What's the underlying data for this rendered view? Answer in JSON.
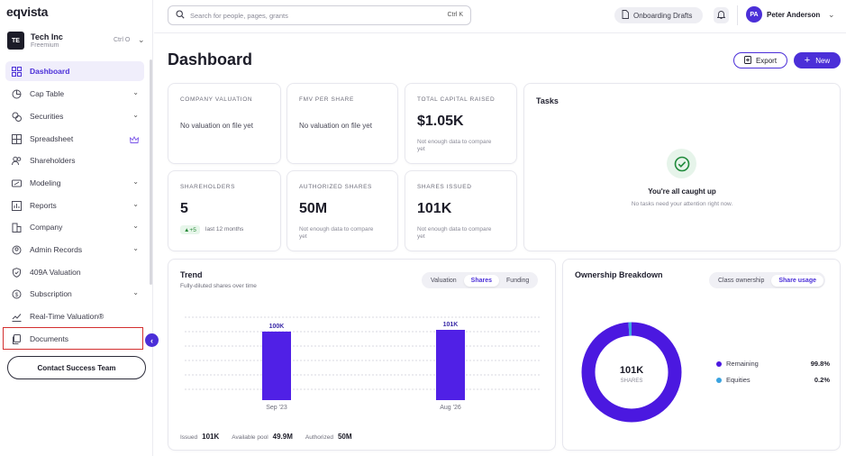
{
  "app": {
    "logo": "eqvista"
  },
  "company": {
    "initials": "TE",
    "name": "Tech Inc",
    "plan": "Freemium",
    "shortcut": "Ctrl O"
  },
  "sidebar": {
    "items": [
      {
        "label": "Dashboard",
        "icon": "dashboard-icon",
        "active": true
      },
      {
        "label": "Cap Table",
        "icon": "pie-chart-icon",
        "chevron": true
      },
      {
        "label": "Securities",
        "icon": "securities-icon",
        "chevron": true
      },
      {
        "label": "Spreadsheet",
        "icon": "table-icon",
        "crown": true
      },
      {
        "label": "Shareholders",
        "icon": "users-icon"
      },
      {
        "label": "Modeling",
        "icon": "modeling-icon",
        "chevron": true
      },
      {
        "label": "Reports",
        "icon": "reports-icon",
        "chevron": true
      },
      {
        "label": "Company",
        "icon": "company-icon",
        "chevron": true
      },
      {
        "label": "Admin Records",
        "icon": "admin-icon",
        "chevron": true
      },
      {
        "label": "409A Valuation",
        "icon": "shield-icon"
      },
      {
        "label": "Subscription",
        "icon": "dollar-icon",
        "chevron": true
      },
      {
        "label": "Real-Time Valuation®",
        "icon": "line-chart-icon"
      },
      {
        "label": "Documents",
        "icon": "documents-icon"
      }
    ],
    "contact_label": "Contact Success Team"
  },
  "topbar": {
    "search_placeholder": "Search for people, pages, grants",
    "search_shortcut": "Ctrl K",
    "drafts_label": "Onboarding Drafts",
    "user_initials": "PA",
    "user_name": "Peter Anderson"
  },
  "main": {
    "title": "Dashboard",
    "export_label": "Export",
    "new_label": "New",
    "stats": {
      "company_valuation": {
        "label": "COMPANY VALUATION",
        "value": "No valuation on file yet"
      },
      "fmv_per_share": {
        "label": "FMV PER SHARE",
        "value": "No valuation on file yet"
      },
      "total_capital_raised": {
        "label": "TOTAL CAPITAL RAISED",
        "value": "$1.05K",
        "note": "Not enough data to compare yet"
      },
      "shareholders": {
        "label": "SHAREHOLDERS",
        "value": "5",
        "delta": "▲+5",
        "period": "last 12 months"
      },
      "authorized_shares": {
        "label": "AUTHORIZED SHARES",
        "value": "50M",
        "note": "Not enough data to compare yet"
      },
      "shares_issued": {
        "label": "SHARES ISSUED",
        "value": "101K",
        "note": "Not enough data to compare yet"
      }
    },
    "tasks": {
      "title": "Tasks",
      "heading": "You're all caught up",
      "subtext": "No tasks need your attention right now."
    },
    "trend": {
      "title": "Trend",
      "subtitle": "Fully-diluted shares over time",
      "tabs": [
        "Valuation",
        "Shares",
        "Funding"
      ],
      "active_tab": "Shares",
      "footer": {
        "issued_label": "Issued",
        "issued": "101K",
        "pool_label": "Available pool",
        "pool": "49.9M",
        "authorized_label": "Authorized",
        "authorized": "50M"
      }
    },
    "ownership": {
      "title": "Ownership Breakdown",
      "tabs": [
        "Class ownership",
        "Share usage"
      ],
      "active_tab": "Share usage",
      "center_value": "101K",
      "center_label": "SHARES",
      "legend": [
        {
          "name": "Remaining",
          "pct": "99.8%",
          "color": "#4b18e0"
        },
        {
          "name": "Equities",
          "pct": "0.2%",
          "color": "#3aa3e0"
        }
      ]
    }
  },
  "chart_data": [
    {
      "type": "bar",
      "categories": [
        "Sep '23",
        "Aug '26"
      ],
      "values": [
        100000,
        101000
      ],
      "value_labels": [
        "100K",
        "101K"
      ],
      "title": "Trend",
      "color": "#5020e6"
    },
    {
      "type": "pie",
      "labels": [
        "Remaining",
        "Equities"
      ],
      "values": [
        99.8,
        0.2
      ],
      "colors": [
        "#4b18e0",
        "#3aa3e0"
      ]
    }
  ]
}
